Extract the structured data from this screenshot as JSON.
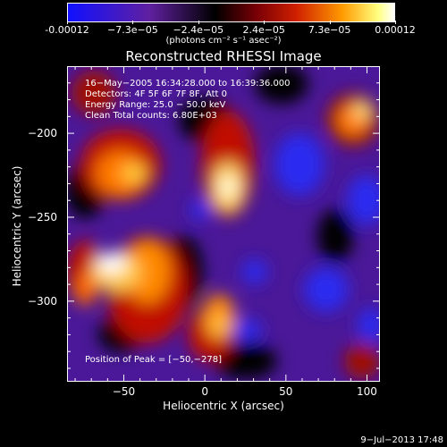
{
  "colorbar": {
    "tick_labels": [
      "-0.00012",
      "−7.3e−05",
      "−2.4e−05",
      "2.4e−05",
      "7.3e−05",
      "0.00012"
    ],
    "units": "(photons cm⁻² s⁻¹ asec⁻²)"
  },
  "title": "Reconstructed RHESSI Image",
  "info": {
    "line1": "16−May−2005 16:34:28.000 to 16:39:36.000",
    "line2": "Detectors: 4F 5F 6F 7F 8F, Att 0",
    "line3": "Energy Range: 25.0 − 50.0 keV",
    "line4": "Clean     Total counts: 6.80E+03"
  },
  "peak": "Position of Peak = [−50,−278]",
  "x_axis": {
    "label": "Heliocentric X (arcsec)",
    "ticks": [
      {
        "value": -50,
        "label": "−50"
      },
      {
        "value": 0,
        "label": "0"
      },
      {
        "value": 50,
        "label": "50"
      },
      {
        "value": 100,
        "label": "100"
      }
    ],
    "range": [
      -85,
      108
    ]
  },
  "y_axis": {
    "label": "Heliocentric Y (arcsec)",
    "ticks": [
      {
        "value": -200,
        "label": "−200"
      },
      {
        "value": -250,
        "label": "−250"
      },
      {
        "value": -300,
        "label": "−300"
      }
    ],
    "range": [
      -348,
      -160
    ]
  },
  "date_stamp": "9−Jul−2013 17:48",
  "colormap": [
    "#1a1aff",
    "#4a1aa0",
    "#000000",
    "#8a0008",
    "#e03a00",
    "#ffb000",
    "#ffffff"
  ]
}
